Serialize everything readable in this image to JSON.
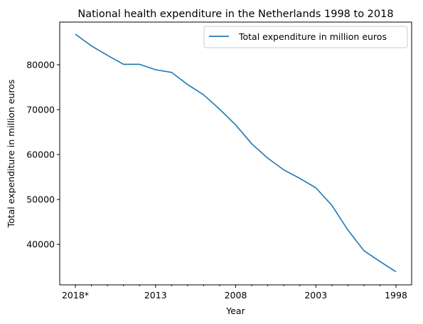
{
  "chart_data": {
    "type": "line",
    "title": "National health expenditure in the Netherlands 1998 to 2018",
    "xlabel": "Year",
    "ylabel": "Total expenditure in million euros",
    "x": [
      "2018*",
      "2017",
      "2016",
      "2015",
      "2014",
      "2013",
      "2012",
      "2011",
      "2010",
      "2009",
      "2008",
      "2007",
      "2006",
      "2005",
      "2004",
      "2003",
      "2002",
      "2001",
      "2000",
      "1999",
      "1998"
    ],
    "x_tick_labels": [
      "2018*",
      "2013",
      "2008",
      "2003",
      "1998"
    ],
    "ylim": [
      31000,
      89500
    ],
    "y_ticks": [
      40000,
      50000,
      60000,
      70000,
      80000
    ],
    "series": [
      {
        "name": "Total expenditure in million euros",
        "color": "#1f77b4",
        "values": [
          86800,
          84200,
          82100,
          80100,
          80100,
          78900,
          78300,
          75600,
          73300,
          70100,
          66600,
          62400,
          59200,
          56600,
          54700,
          52600,
          48700,
          43200,
          38600,
          36200,
          33900
        ]
      }
    ],
    "grid": false,
    "legend_position": "top-right"
  }
}
